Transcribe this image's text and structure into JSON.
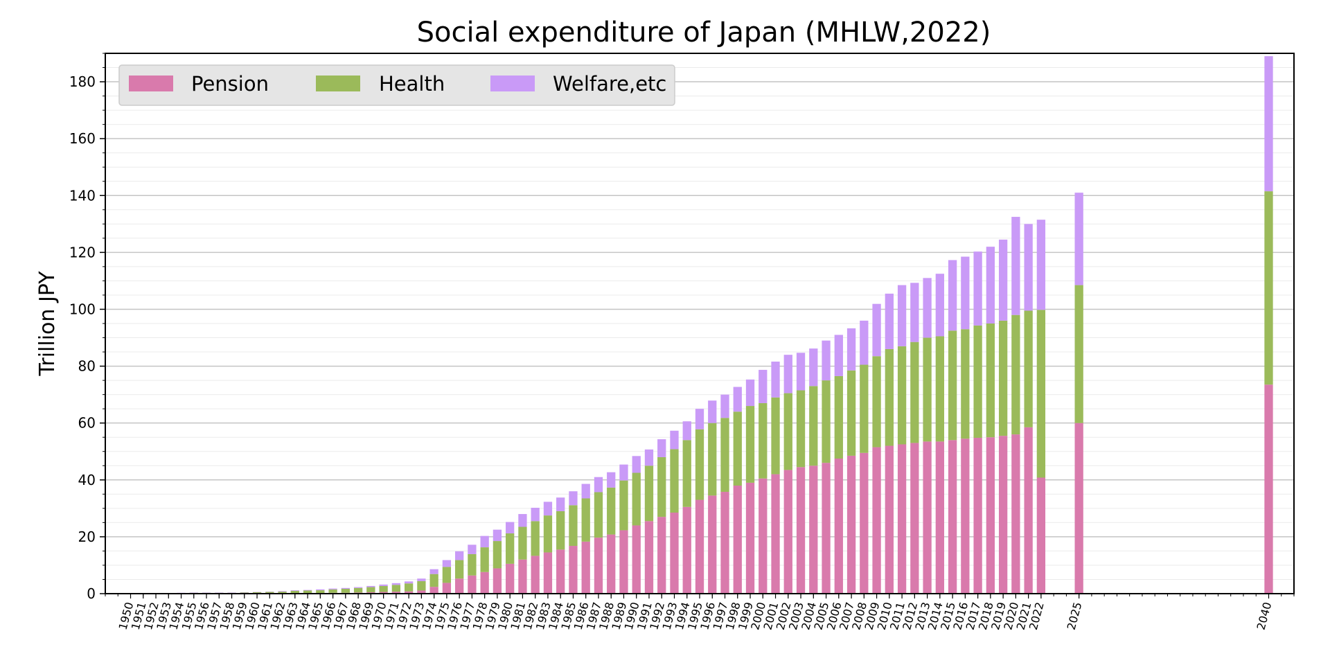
{
  "chart_data": {
    "type": "bar",
    "stacked": true,
    "title": "Social expenditure of Japan (MHLW,2022)",
    "xlabel": "",
    "ylabel": "Trillion JPY",
    "ylim": [
      0,
      190
    ],
    "yticks": [
      0,
      20,
      40,
      60,
      80,
      100,
      120,
      140,
      160,
      180
    ],
    "xlim": [
      1948,
      2042
    ],
    "grid": true,
    "legend_position": "top-left",
    "colors": {
      "Pension": "#d97aac",
      "Health": "#9bba5a",
      "Welfare,etc": "#c99af7"
    },
    "x": [
      1950,
      1951,
      1952,
      1953,
      1954,
      1955,
      1956,
      1957,
      1958,
      1959,
      1960,
      1961,
      1962,
      1963,
      1964,
      1965,
      1966,
      1967,
      1968,
      1969,
      1970,
      1971,
      1972,
      1973,
      1974,
      1975,
      1976,
      1977,
      1978,
      1979,
      1980,
      1981,
      1982,
      1983,
      1984,
      1985,
      1986,
      1987,
      1988,
      1989,
      1990,
      1991,
      1992,
      1993,
      1994,
      1995,
      1996,
      1997,
      1998,
      1999,
      2000,
      2001,
      2002,
      2003,
      2004,
      2005,
      2006,
      2007,
      2008,
      2009,
      2010,
      2011,
      2012,
      2013,
      2014,
      2015,
      2016,
      2017,
      2018,
      2019,
      2020,
      2021,
      2022,
      2025,
      2040
    ],
    "series": [
      {
        "name": "Pension",
        "color": "#d97aac",
        "values": [
          0.0,
          0.0,
          0.0,
          0.0,
          0.1,
          0.1,
          0.1,
          0.1,
          0.1,
          0.1,
          0.1,
          0.1,
          0.1,
          0.2,
          0.2,
          0.2,
          0.3,
          0.3,
          0.4,
          0.5,
          0.6,
          0.7,
          0.8,
          1.1,
          2.4,
          3.8,
          5.3,
          6.4,
          7.6,
          8.9,
          10.5,
          12.0,
          13.3,
          14.5,
          15.5,
          16.8,
          18.3,
          19.7,
          20.8,
          22.3,
          24.0,
          25.5,
          27.0,
          28.5,
          30.5,
          33.0,
          34.5,
          35.8,
          38.0,
          39.0,
          40.5,
          42.0,
          43.5,
          44.5,
          45.0,
          46.0,
          47.5,
          48.5,
          49.5,
          51.5,
          52.0,
          52.5,
          53.0,
          53.5,
          53.5,
          54.0,
          54.5,
          54.8,
          55.0,
          55.5,
          56.0,
          58.5,
          40.8,
          60.0,
          73.5
        ]
      },
      {
        "name": "Health",
        "color": "#9bba5a",
        "values": [
          0.1,
          0.1,
          0.1,
          0.1,
          0.1,
          0.2,
          0.2,
          0.2,
          0.2,
          0.3,
          0.4,
          0.5,
          0.6,
          0.8,
          0.9,
          1.0,
          1.2,
          1.4,
          1.6,
          1.8,
          2.1,
          2.4,
          2.8,
          3.3,
          4.5,
          5.6,
          6.5,
          7.5,
          8.7,
          9.6,
          10.7,
          11.5,
          12.2,
          13.0,
          13.5,
          14.3,
          15.2,
          16.0,
          16.5,
          17.5,
          18.5,
          19.5,
          21.0,
          22.3,
          23.5,
          24.8,
          25.5,
          26.0,
          26.0,
          27.0,
          26.5,
          27.0,
          27.0,
          27.0,
          28.0,
          29.0,
          29.0,
          30.0,
          31.0,
          32.0,
          34.0,
          34.5,
          35.5,
          36.5,
          37.0,
          38.5,
          38.5,
          39.5,
          40.0,
          40.5,
          42.0,
          41.0,
          59.0,
          48.5,
          68.0
        ]
      },
      {
        "name": "Welfare,etc",
        "color": "#c99af7",
        "values": [
          0.1,
          0.1,
          0.1,
          0.1,
          0.1,
          0.1,
          0.1,
          0.1,
          0.1,
          0.1,
          0.1,
          0.1,
          0.2,
          0.2,
          0.2,
          0.3,
          0.3,
          0.3,
          0.3,
          0.4,
          0.5,
          0.6,
          0.7,
          0.9,
          1.7,
          2.4,
          3.1,
          3.3,
          4.0,
          4.0,
          4.0,
          4.5,
          4.7,
          4.8,
          4.8,
          4.9,
          5.1,
          5.3,
          5.4,
          5.6,
          5.9,
          5.7,
          6.3,
          6.5,
          6.6,
          7.2,
          7.9,
          8.2,
          8.7,
          9.3,
          11.7,
          12.6,
          13.5,
          13.2,
          13.2,
          14.0,
          14.5,
          14.8,
          15.5,
          18.4,
          19.5,
          21.5,
          20.8,
          21.0,
          22.0,
          24.8,
          25.5,
          26.0,
          27.0,
          28.5,
          34.5,
          30.5,
          31.7,
          32.5,
          47.5
        ]
      }
    ]
  }
}
